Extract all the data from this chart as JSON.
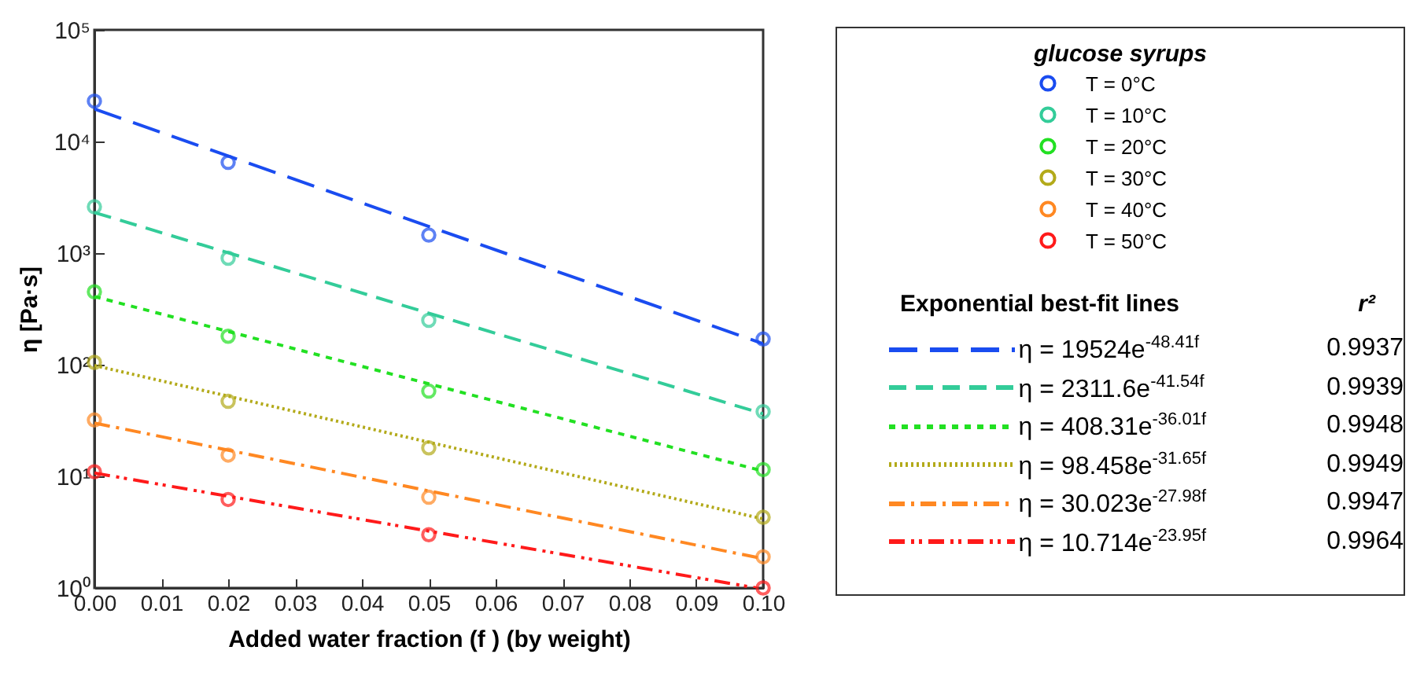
{
  "chart_data": {
    "type": "scatter",
    "xlabel": "Added water fraction  (f )  (by weight)",
    "ylabel": "η [Pa·s]",
    "legend_title": "glucose syrups",
    "legend": "right",
    "log": "y",
    "xlim": [
      0,
      0.1
    ],
    "xticks": [
      {
        "value": 0,
        "label": "0.00"
      },
      {
        "value": 0.01,
        "label": "0.01"
      },
      {
        "value": 0.02,
        "label": "0.02"
      },
      {
        "value": 0.03,
        "label": "0.03"
      },
      {
        "value": 0.04,
        "label": "0.04"
      },
      {
        "value": 0.05,
        "label": "0.05"
      },
      {
        "value": 0.06,
        "label": "0.06"
      },
      {
        "value": 0.07,
        "label": "0.07"
      },
      {
        "value": 0.08,
        "label": "0.08"
      },
      {
        "value": 0.09,
        "label": "0.09"
      },
      {
        "value": 0.1,
        "label": "0.10"
      }
    ],
    "ylim": [
      1,
      100000
    ],
    "yticks": [
      {
        "value": 1,
        "label": "10⁰"
      },
      {
        "value": 10,
        "label": "10¹"
      },
      {
        "value": 100,
        "label": "10²"
      },
      {
        "value": 1000,
        "label": "10³"
      },
      {
        "value": 10000,
        "label": "10⁴"
      },
      {
        "value": 100000,
        "label": "10⁵"
      }
    ],
    "annotations": [
      "Exponential best-fit lines",
      "r²",
      "0.9937",
      "0.9939",
      "0.9948",
      "0.9949",
      "0.9947",
      "0.9964"
    ],
    "series": [
      {
        "type": "scatter",
        "name": "T = 0°C",
        "color": "#1a4cf0",
        "marker": "circle",
        "x": [
          0,
          0.02,
          0.05,
          0.1
        ],
        "values": [
          23000,
          6500,
          1450,
          170
        ]
      },
      {
        "type": "scatter",
        "name": "T = 10°C",
        "color": "#33cc99",
        "marker": "circle",
        "x": [
          0,
          0.02,
          0.05,
          0.1
        ],
        "values": [
          2600,
          900,
          250,
          38
        ]
      },
      {
        "type": "scatter",
        "name": "T = 20°C",
        "color": "#22e022",
        "marker": "circle",
        "x": [
          0,
          0.02,
          0.05,
          0.1
        ],
        "values": [
          450,
          180,
          58,
          11.5
        ]
      },
      {
        "type": "scatter",
        "name": "T = 30°C",
        "color": "#b3aa1a",
        "marker": "circle",
        "x": [
          0,
          0.02,
          0.05,
          0.1
        ],
        "values": [
          105,
          47,
          18,
          4.3
        ]
      },
      {
        "type": "scatter",
        "name": "T = 40°C",
        "color": "#ff8822",
        "marker": "circle",
        "x": [
          0,
          0.02,
          0.05,
          0.1
        ],
        "values": [
          32,
          15.5,
          6.5,
          1.9
        ]
      },
      {
        "type": "scatter",
        "name": "T = 50°C",
        "color": "#ff1a1a",
        "marker": "circle",
        "x": [
          0,
          0.02,
          0.05,
          0.1
        ],
        "values": [
          11,
          6.2,
          3.0,
          1.0
        ]
      },
      {
        "type": "line",
        "name": "η = 19524e$^{-48.41f}$",
        "color": "#1a4cf0",
        "line_style": "dashed",
        "x": [
          0,
          0.1
        ],
        "values": [
          19524,
          154.2
        ]
      },
      {
        "type": "line",
        "name": "η = 2311.6e$^{-41.54f}$",
        "color": "#33cc99",
        "line_style": "dashed",
        "x": [
          0,
          0.1
        ],
        "values": [
          2311.6,
          36.3
        ]
      },
      {
        "type": "line",
        "name": "η = 408.31e$^{-36.01f}$",
        "color": "#22e022",
        "line_style": "dashed",
        "x": [
          0,
          0.1
        ],
        "values": [
          408.31,
          11.15
        ]
      },
      {
        "type": "line",
        "name": "η = 98.458e$^{-31.65f}$",
        "color": "#b3aa1a",
        "line_style": "dotted",
        "x": [
          0,
          0.1
        ],
        "values": [
          98.458,
          4.156
        ]
      },
      {
        "type": "line",
        "name": "η = 30.023e$^{-27.98f}$",
        "color": "#ff8822",
        "line_style": "dashed",
        "x": [
          0,
          0.1
        ],
        "values": [
          30.023,
          1.829
        ]
      },
      {
        "type": "line",
        "name": "η = 10.714e$^{-23.95f}$",
        "color": "#ff1a1a",
        "line_style": "dashed",
        "x": [
          0,
          0.099
        ],
        "values": [
          10.714,
          1.0
        ]
      }
    ]
  }
}
